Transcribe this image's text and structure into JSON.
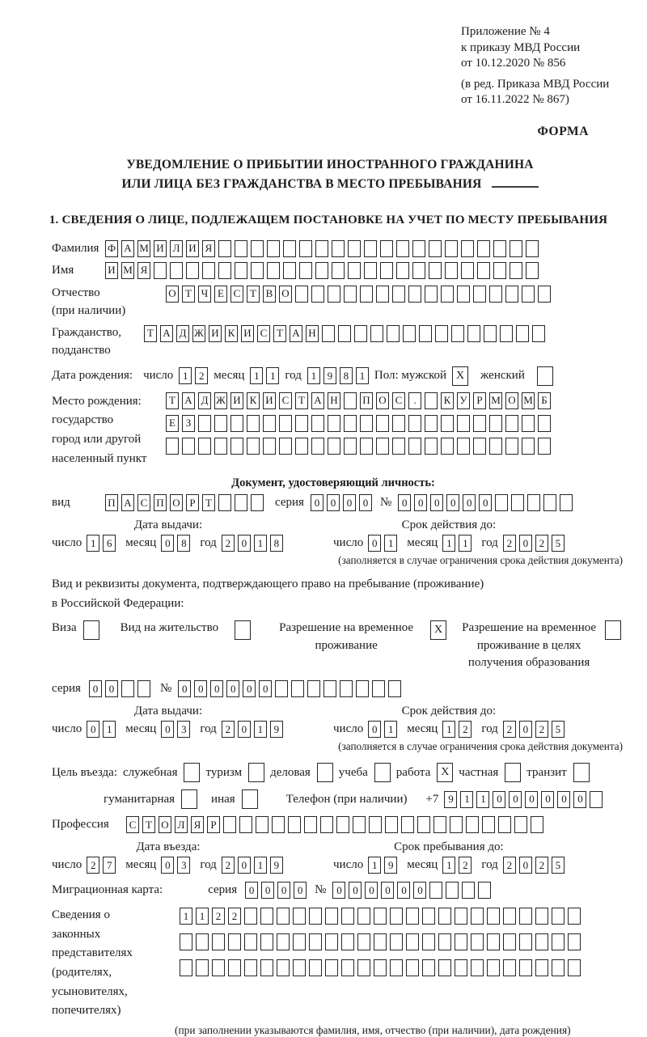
{
  "labels": {
    "day": "число",
    "month": "месяц",
    "year": "год",
    "series": "серия",
    "number": "№"
  },
  "header": {
    "appendix": [
      "Приложение № 4",
      "к приказу МВД России",
      "от 10.12.2020 № 856"
    ],
    "revision": [
      "(в ред. Приказа МВД России",
      "от 16.11.2022 № 867)"
    ],
    "form_label": "ФОРМА"
  },
  "title": {
    "line1": "УВЕДОМЛЕНИЕ О ПРИБЫТИИ ИНОСТРАННОГО ГРАЖДАНИНА",
    "line2": "ИЛИ ЛИЦА БЕЗ ГРАЖДАНСТВА В МЕСТО ПРЕБЫВАНИЯ"
  },
  "section1_heading": "1. СВЕДЕНИЯ О ЛИЦЕ, ПОДЛЕЖАЩЕМ ПОСТАНОВКЕ НА УЧЕТ ПО МЕСТУ ПРЕБЫВАНИЯ",
  "surname": {
    "label": "Фамилия",
    "grid": {
      "value": "ФАМИЛИЯ",
      "count": 27
    }
  },
  "firstname": {
    "label": "Имя",
    "grid": {
      "value": "ИМЯ",
      "count": 27
    }
  },
  "patronymic": {
    "label1": "Отчество",
    "label2": "(при наличии)",
    "grid": {
      "value": "ОТЧЕСТВО",
      "count": 24
    }
  },
  "citizenship": {
    "label1": "Гражданство,",
    "label2": "подданство",
    "grid": {
      "value": "ТАДЖИКИСТАН",
      "count": 25
    }
  },
  "birthdate": {
    "label": "Дата рождения:",
    "day": {
      "value": "12",
      "count": 2
    },
    "month": {
      "value": "11",
      "count": 2
    },
    "year": {
      "value": "1981",
      "count": 4
    },
    "sex_label": "Пол: мужской",
    "male_checked": "X",
    "female_label": "женский",
    "female_checked": ""
  },
  "birthplace": {
    "label_lines": [
      "Место рождения:",
      "государство",
      "город или другой",
      "населенный пункт"
    ],
    "row1": {
      "value": "ТАДЖИКИСТАН ПОС. КУРМОМБ",
      "count": 24
    },
    "row2": {
      "value": "ЕЗ",
      "count": 24
    },
    "row3": {
      "value": "",
      "count": 24
    }
  },
  "identity_doc": {
    "heading": "Документ, удостоверяющий личность:",
    "kind_label": "вид",
    "kind": {
      "value": "ПАСПОРТ",
      "count": 10
    },
    "series": {
      "value": "0000",
      "count": 4
    },
    "number": {
      "value": "000000",
      "count": 11
    },
    "issue_heading": "Дата выдачи:",
    "issue_day": {
      "value": "16",
      "count": 2
    },
    "issue_month": {
      "value": "08",
      "count": 2
    },
    "issue_year": {
      "value": "2018",
      "count": 4
    },
    "expiry_heading": "Срок действия до:",
    "expiry_day": {
      "value": "01",
      "count": 2
    },
    "expiry_month": {
      "value": "11",
      "count": 2
    },
    "expiry_year": {
      "value": "2025",
      "count": 4
    },
    "note": "(заполняется в случае ограничения срока действия документа)"
  },
  "residence_doc": {
    "intro1": "Вид и реквизиты документа, подтверждающего право на пребывание (проживание)",
    "intro2": "в Российской Федерации:",
    "options": [
      {
        "label": "Виза",
        "checked": ""
      },
      {
        "label": "Вид на жительство",
        "checked": ""
      },
      {
        "label": "Разрешение на временное проживание",
        "checked": "X"
      },
      {
        "label": "Разрешение на временное проживание в целях получения образования",
        "checked": ""
      }
    ],
    "series": {
      "value": "00",
      "count": 4
    },
    "number": {
      "value": "000000",
      "count": 14
    },
    "issue_heading": "Дата выдачи:",
    "issue_day": {
      "value": "01",
      "count": 2
    },
    "issue_month": {
      "value": "03",
      "count": 2
    },
    "issue_year": {
      "value": "2019",
      "count": 4
    },
    "expiry_heading": "Срок действия до:",
    "expiry_day": {
      "value": "01",
      "count": 2
    },
    "expiry_month": {
      "value": "12",
      "count": 2
    },
    "expiry_year": {
      "value": "2025",
      "count": 4
    },
    "note": "(заполняется в случае ограничения срока действия документа)"
  },
  "purpose": {
    "lead": "Цель въезда:",
    "options": [
      {
        "label": "служебная",
        "checked": ""
      },
      {
        "label": "туризм",
        "checked": ""
      },
      {
        "label": "деловая",
        "checked": ""
      },
      {
        "label": "учеба",
        "checked": ""
      },
      {
        "label": "работа",
        "checked": "X"
      },
      {
        "label": "частная",
        "checked": ""
      },
      {
        "label": "транзит",
        "checked": ""
      },
      {
        "label": "гуманитарная",
        "checked": ""
      },
      {
        "label": "иная",
        "checked": ""
      }
    ],
    "phone_label": "Телефон (при наличии)",
    "phone_prefix": "+7",
    "phone": {
      "value": "911000000",
      "count": 10
    }
  },
  "profession": {
    "label": "Профессия",
    "grid": {
      "value": "СТОЛЯР",
      "count": 26
    }
  },
  "entry": {
    "date_heading": "Дата въезда:",
    "day": {
      "value": "27",
      "count": 2
    },
    "month": {
      "value": "03",
      "count": 2
    },
    "year": {
      "value": "2019",
      "count": 4
    },
    "stay_heading": "Срок пребывания до:",
    "stay_day": {
      "value": "19",
      "count": 2
    },
    "stay_month": {
      "value": "12",
      "count": 2
    },
    "stay_year": {
      "value": "2025",
      "count": 4
    }
  },
  "migration_card": {
    "label": "Миграционная карта:",
    "series": {
      "value": "0000",
      "count": 4
    },
    "number": {
      "value": "000000",
      "count": 10
    }
  },
  "representatives": {
    "label_lines": [
      "Сведения о",
      "законных",
      "представителях",
      "(родителях,",
      "усыновителях,",
      "попечителях)"
    ],
    "row1": {
      "value": "1122",
      "count": 25
    },
    "row2": {
      "value": "",
      "count": 25
    },
    "row3": {
      "value": "",
      "count": 25
    },
    "hint": "(при заполнении указываются фамилия, имя, отчество (при наличии), дата рождения)"
  }
}
